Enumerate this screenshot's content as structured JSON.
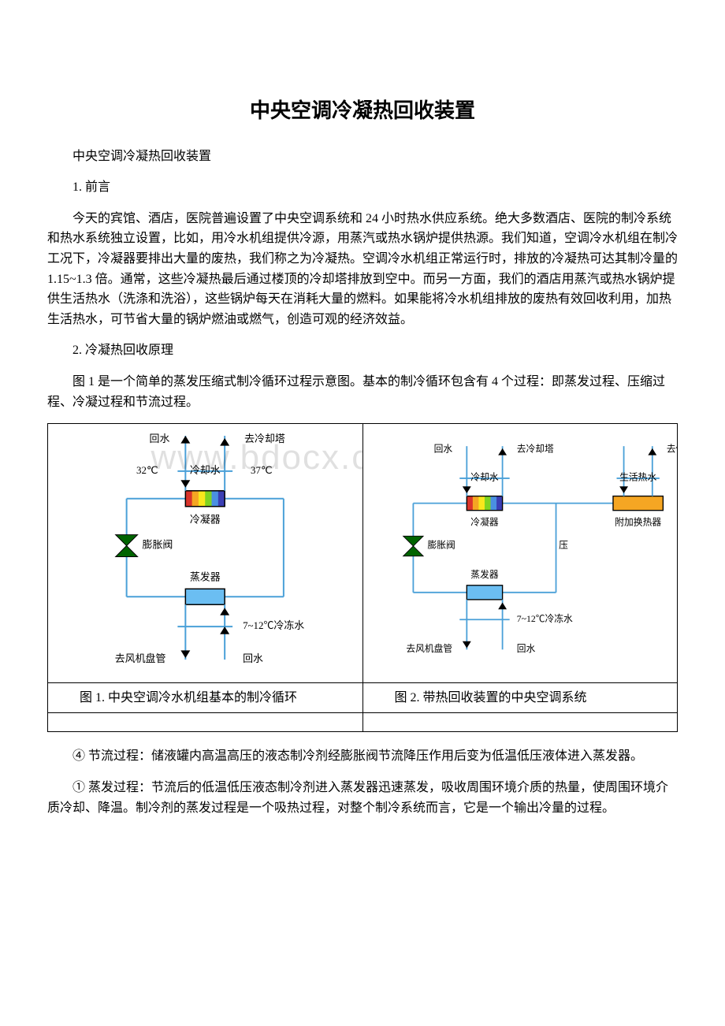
{
  "title": "中央空调冷凝热回收装置",
  "subtitle": "中央空调冷凝热回收装置",
  "section1_label": "1. 前言",
  "para1": "今天的宾馆、酒店，医院普遍设置了中央空调系统和 24 小时热水供应系统。绝大多数酒店、医院的制冷系统和热水系统独立设置，比如，用冷水机组提供冷源，用蒸汽或热水锅炉提供热源。我们知道，空调冷水机组在制冷工况下，冷凝器要排出大量的废热，我们称之为冷凝热。空调冷水机组正常运行时，排放的冷凝热可达其制冷量的 1.15~1.3 倍。通常，这些冷凝热最后通过楼顶的冷却塔排放到空中。而另一方面，我们的酒店用蒸汽或热水锅炉提供生活热水（洗涤和洗浴），这些锅炉每天在消耗大量的燃料。如果能将冷水机组排放的废热有效回收利用，加热生活热水，可节省大量的锅炉燃油或燃气，创造可观的经济效益。",
  "section2_label": "2. 冷凝热回收原理",
  "para2": "图 1 是一个简单的蒸发压缩式制冷循环过程示意图。基本的制冷循环包含有 4 个过程：即蒸发过程、压缩过程、冷凝过程和节流过程。",
  "fig1_caption": "　　图 1. 中央空调冷水机组基本的制冷循环",
  "fig2_caption": "　　图 2. 带热回收装置的中央空调系统",
  "para3": "④ 节流过程：储液罐内高温高压的液态制冷剂经膨胀阀节流降压作用后变为低温低压液体进入蒸发器。",
  "para4": "① 蒸发过程：节流后的低温低压液态制冷剂进入蒸发器迅速蒸发，吸收周围环境介质的热量，使周围环境介质冷却、降温。制冷剂的蒸发过程是一个吸热过程，对整个制冷系统而言，它是一个输出冷量的过程。",
  "watermark": "www.bdocx.com",
  "diagram": {
    "labels": {
      "return_water": "回水",
      "to_cooling_tower": "去冷却塔",
      "cooling_water": "冷却水",
      "temp_in": "32℃",
      "temp_out": "37℃",
      "condenser": "冷凝器",
      "expansion_valve": "膨胀阀",
      "compressor_hint": "压",
      "evaporator": "蒸发器",
      "chilled_water": "7~12℃冷冻水",
      "to_fan_coil": "去风机盘管",
      "domestic_hot_water": "生活热水",
      "aux_heat_exchanger": "附加换热器",
      "to_storage": "去储",
      "return_water2": "回水"
    },
    "colors": {
      "line": "#4aa0d8",
      "arrow_dark": "#000000",
      "evaporator_fill": "#6bbef2",
      "heat_exchanger_fill": "#f5a623",
      "valve_fill": "#006400",
      "border": "#000000",
      "text": "#000000",
      "rainbow": [
        "#d9342b",
        "#f5a623",
        "#f8e71c",
        "#7ed321",
        "#4a90e2",
        "#3b3fb5"
      ]
    },
    "font": {
      "label_size": 13,
      "family": "SimSun"
    }
  }
}
